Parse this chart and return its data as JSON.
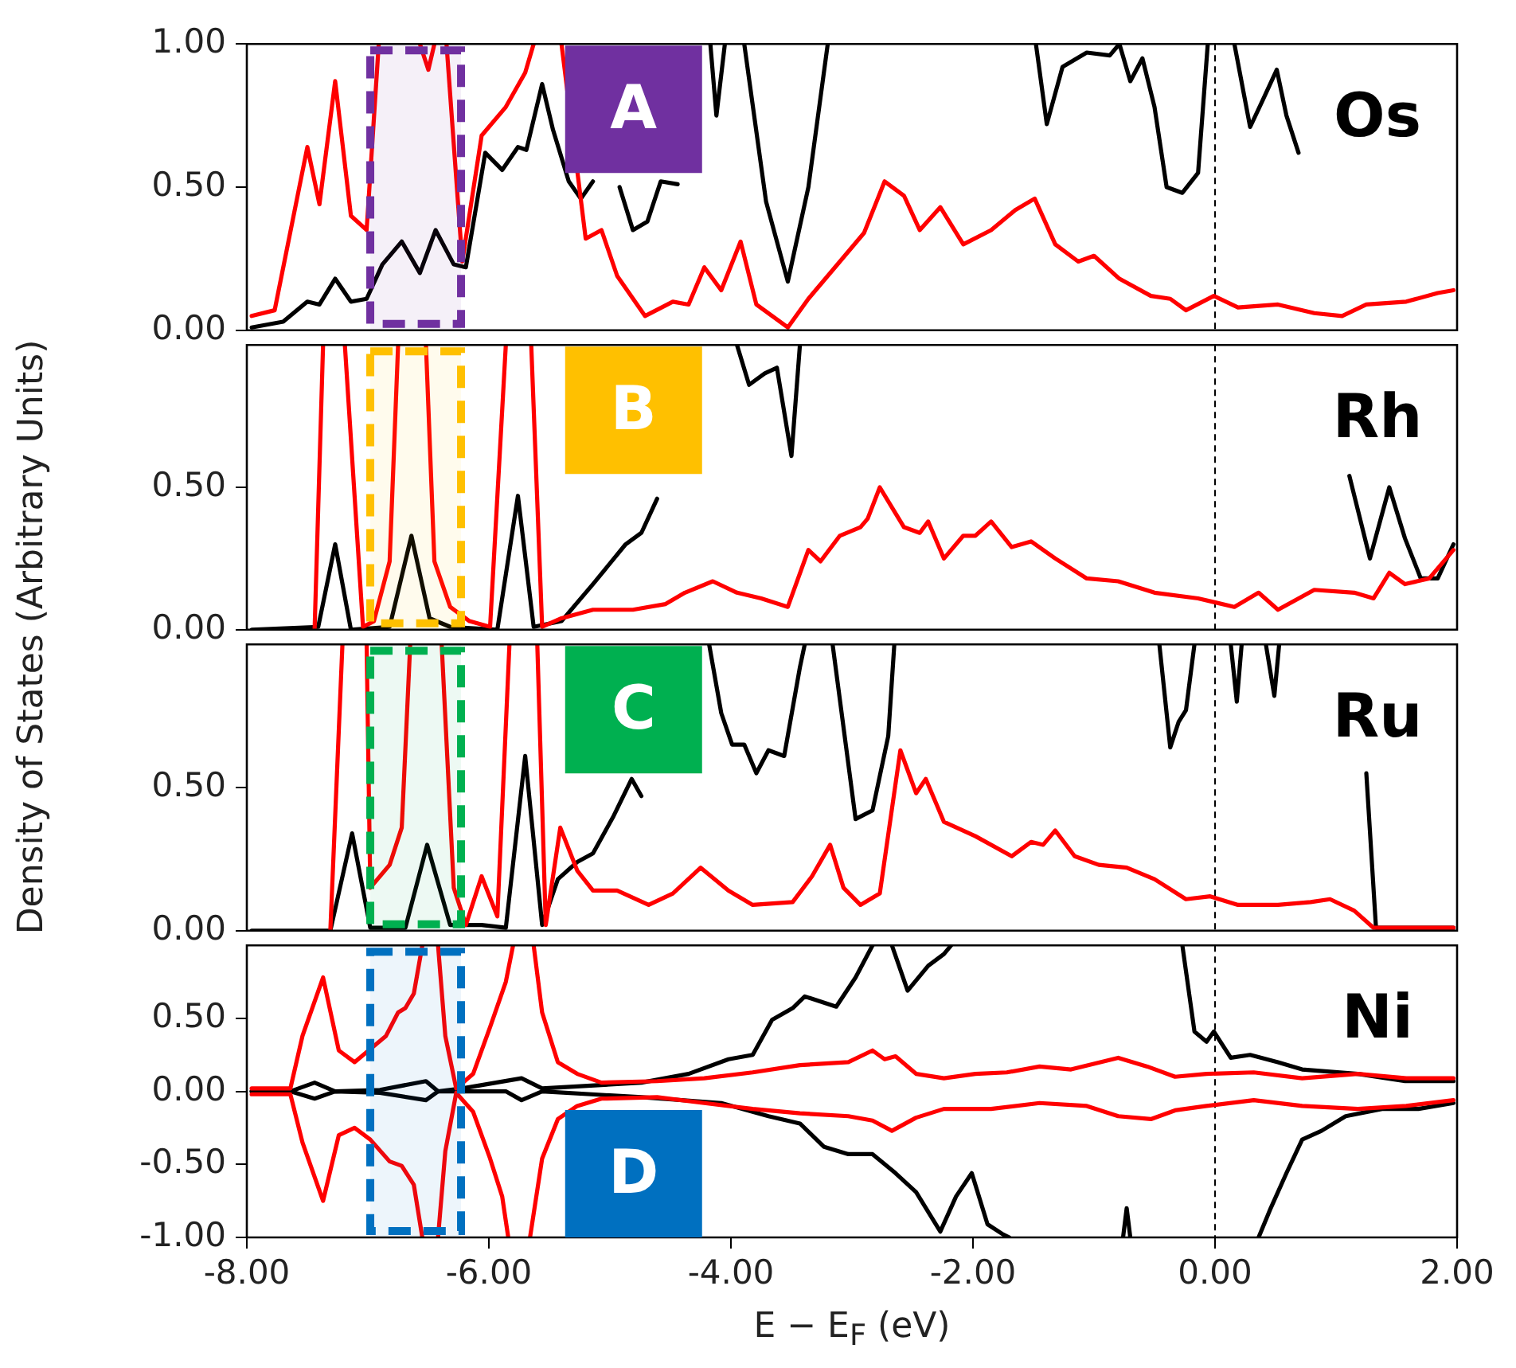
{
  "chart_data": [
    {
      "type": "line",
      "ylabel": "Density of States (Arbitrary Units)",
      "xlim": [
        -8,
        2
      ],
      "ylim": [
        0,
        1
      ],
      "yticks": [
        {
          "value": 0,
          "label": "0.00"
        },
        {
          "value": 0.5,
          "label": "0.50"
        },
        {
          "value": 1,
          "label": "1.00"
        }
      ],
      "tick_labels": "y",
      "series": [
        {
          "color": "#ff0000",
          "x": [
            -7.96,
            -7.77,
            -7.5,
            -7.4,
            -7.27,
            -7.14,
            -7.01,
            -6.91,
            -6.75,
            -6.57,
            -6.5,
            -6.45,
            -6.4,
            -6.35,
            -6.22,
            -6.06,
            -5.86,
            -5.7,
            -5.63,
            -5.5,
            -5.4,
            -5.2,
            -5.07,
            -4.94,
            -4.71,
            -4.48,
            -4.35,
            -4.22,
            -4.08,
            -3.92,
            -3.79,
            -3.53,
            -3.36,
            -3.1,
            -2.9,
            -2.73,
            -2.57,
            -2.44,
            -2.27,
            -2.08,
            -1.85,
            -1.65,
            -1.49,
            -1.32,
            -1.13,
            -1.0,
            -0.79,
            -0.53,
            -0.37,
            -0.24,
            -0.01,
            0.19,
            0.52,
            0.82,
            1.05,
            1.25,
            1.58,
            1.84,
            1.97
          ],
          "values": [
            0.05,
            0.07,
            0.64,
            0.44,
            0.87,
            0.4,
            0.35,
            1.0,
            null,
            1.0,
            0.91,
            1.0,
            null,
            1.0,
            0.24,
            0.68,
            0.78,
            0.9,
            1.0,
            null,
            1.0,
            0.32,
            0.35,
            0.19,
            0.05,
            0.1,
            0.09,
            0.22,
            0.14,
            0.31,
            0.09,
            0.01,
            0.11,
            0.24,
            0.34,
            0.52,
            0.47,
            0.35,
            0.43,
            0.3,
            0.35,
            0.42,
            0.46,
            0.3,
            0.24,
            0.26,
            0.18,
            0.12,
            0.11,
            0.07,
            0.12,
            0.08,
            0.09,
            0.06,
            0.05,
            0.09,
            0.1,
            0.13,
            0.14
          ]
        },
        {
          "color": "#000000",
          "x": [
            -7.96,
            -7.7,
            -7.5,
            -7.4,
            -7.27,
            -7.14,
            -7.01,
            -6.88,
            -6.72,
            -6.57,
            -6.44,
            -6.29,
            -6.19,
            -6.03,
            -5.89,
            -5.76,
            -5.69,
            -5.56,
            -5.47,
            -5.34,
            -5.24,
            -5.14,
            -5.03,
            -4.92,
            -4.81,
            -4.69,
            -4.58,
            -4.44,
            -4.38,
            -4.17,
            -4.12,
            -4.05,
            -3.97,
            -3.89,
            -3.71,
            -3.53,
            -3.36,
            -3.2,
            -2.0,
            -1.48,
            -1.39,
            -1.26,
            -1.06,
            -0.87,
            -0.79,
            -0.7,
            -0.6,
            -0.5,
            -0.4,
            -0.27,
            -0.14,
            -0.06,
            0.05,
            0.16,
            0.29,
            0.39,
            0.51,
            0.59,
            0.69
          ],
          "values": [
            0.01,
            0.03,
            0.1,
            0.09,
            0.18,
            0.1,
            0.11,
            0.23,
            0.31,
            0.2,
            0.35,
            0.23,
            0.22,
            0.62,
            0.56,
            0.64,
            0.63,
            0.86,
            0.7,
            0.52,
            0.46,
            0.52,
            null,
            0.5,
            0.35,
            0.38,
            0.52,
            0.51,
            null,
            1.0,
            0.75,
            1.0,
            null,
            1.0,
            0.45,
            0.17,
            0.5,
            1.0,
            null,
            1.0,
            0.72,
            0.92,
            0.97,
            0.96,
            1.0,
            0.87,
            0.95,
            0.78,
            0.5,
            0.48,
            0.55,
            1.0,
            null,
            1.0,
            0.71,
            0.8,
            0.91,
            0.75,
            0.62
          ]
        }
      ],
      "ref_lines": [
        {
          "axis": "x",
          "value": 0,
          "color": "#000000",
          "line_style": "dashed"
        }
      ],
      "bands": [
        {
          "axis": "x",
          "from": -6.98,
          "to": -6.23,
          "color": "#7030a0"
        }
      ],
      "annotations": [
        "A",
        "Os"
      ]
    },
    {
      "type": "line",
      "xlim": [
        -8,
        2
      ],
      "ylim": [
        0,
        1
      ],
      "yticks": [
        {
          "value": 0,
          "label": "0.00"
        },
        {
          "value": 0.5,
          "label": "0.50"
        }
      ],
      "tick_labels": "y",
      "series": [
        {
          "color": "#ff0000",
          "x": [
            -7.44,
            -7.37,
            -7.28,
            -7.19,
            -7.04,
            -6.95,
            -6.82,
            -6.75,
            -6.63,
            -6.52,
            -6.45,
            -6.32,
            -6.16,
            -5.99,
            -5.86,
            -5.75,
            -5.65,
            -5.56,
            -5.4,
            -5.14,
            -4.81,
            -4.54,
            -4.38,
            -4.15,
            -3.95,
            -3.75,
            -3.53,
            -3.36,
            -3.26,
            -3.1,
            -2.93,
            -2.87,
            -2.77,
            -2.67,
            -2.57,
            -2.44,
            -2.37,
            -2.24,
            -2.08,
            -1.98,
            -1.85,
            -1.68,
            -1.52,
            -1.32,
            -1.06,
            -0.8,
            -0.5,
            -0.14,
            0.16,
            0.36,
            0.52,
            0.82,
            1.15,
            1.31,
            1.44,
            1.57,
            1.77,
            1.97
          ],
          "values": [
            0,
            1.0,
            null,
            1.0,
            0.01,
            0.03,
            0.24,
            1.0,
            null,
            1.0,
            0.24,
            0.08,
            0.03,
            0.01,
            1.0,
            null,
            1.0,
            0.01,
            0.04,
            0.07,
            0.07,
            0.09,
            0.13,
            0.17,
            0.13,
            0.11,
            0.08,
            0.28,
            0.24,
            0.33,
            0.36,
            0.39,
            0.5,
            0.43,
            0.36,
            0.34,
            0.38,
            0.25,
            0.33,
            0.33,
            0.38,
            0.29,
            0.31,
            0.25,
            0.18,
            0.17,
            0.13,
            0.11,
            0.08,
            0.13,
            0.07,
            0.14,
            0.13,
            0.11,
            0.2,
            0.16,
            0.18,
            0.28
          ]
        },
        {
          "color": "#000000",
          "x": [
            -7.96,
            -7.41,
            -7.27,
            -7.14,
            -6.82,
            -6.64,
            -6.49,
            -6.32,
            -5.93,
            -5.76,
            -5.63,
            -5.4,
            -5.14,
            -4.87,
            -4.74,
            -4.61,
            -4.5,
            -3.95,
            -3.85,
            -3.72,
            -3.62,
            -3.5,
            -3.43,
            -3.3,
            1.11,
            1.28,
            1.44,
            1.57,
            1.7,
            1.84,
            1.97
          ],
          "values": [
            0,
            0.01,
            0.3,
            0,
            0.01,
            0.33,
            0.04,
            0.01,
            0,
            0.47,
            0.01,
            0.03,
            0.16,
            0.3,
            0.34,
            0.46,
            null,
            1.0,
            0.86,
            0.9,
            0.92,
            0.61,
            1.0,
            null,
            0.54,
            0.25,
            0.5,
            0.32,
            0.18,
            0.18,
            0.3
          ]
        }
      ],
      "ref_lines": [
        {
          "axis": "x",
          "value": 0,
          "color": "#000000",
          "line_style": "dashed"
        }
      ],
      "bands": [
        {
          "axis": "x",
          "from": -6.98,
          "to": -6.23,
          "color": "#ffc000"
        }
      ],
      "annotations": [
        "B",
        "Rh"
      ]
    },
    {
      "type": "line",
      "xlim": [
        -8,
        2
      ],
      "ylim": [
        0,
        1
      ],
      "yticks": [
        {
          "value": 0,
          "label": "0.00"
        },
        {
          "value": 0.5,
          "label": "0.50"
        }
      ],
      "tick_labels": "y",
      "series": [
        {
          "color": "#ff0000",
          "x": [
            -7.31,
            -7.21,
            -7.1,
            -7.01,
            -6.98,
            -6.82,
            -6.72,
            -6.65,
            -6.5,
            -6.39,
            -6.29,
            -6.19,
            -6.06,
            -5.93,
            -5.83,
            -5.7,
            -5.6,
            -5.53,
            -5.41,
            -5.27,
            -5.14,
            -4.94,
            -4.68,
            -4.48,
            -4.25,
            -4.02,
            -3.82,
            -3.49,
            -3.33,
            -3.18,
            -3.07,
            -2.93,
            -2.77,
            -2.6,
            -2.47,
            -2.39,
            -2.24,
            -1.98,
            -1.68,
            -1.52,
            -1.42,
            -1.32,
            -1.16,
            -0.96,
            -0.73,
            -0.5,
            -0.24,
            -0.04,
            0.19,
            0.52,
            0.79,
            0.95,
            1.15,
            1.31,
            1.97
          ],
          "values": [
            0,
            1.0,
            null,
            1.0,
            0.15,
            0.23,
            0.36,
            1.0,
            null,
            1.0,
            0.15,
            0.02,
            0.19,
            0.05,
            1.0,
            null,
            1.0,
            0.02,
            0.36,
            0.21,
            0.14,
            0.14,
            0.09,
            0.13,
            0.22,
            0.14,
            0.09,
            0.1,
            0.19,
            0.3,
            0.15,
            0.09,
            0.13,
            0.63,
            0.48,
            0.53,
            0.38,
            0.33,
            0.26,
            0.31,
            0.3,
            0.35,
            0.26,
            0.23,
            0.22,
            0.18,
            0.11,
            0.12,
            0.09,
            0.09,
            0.1,
            0.11,
            0.07,
            0.01,
            0.01
          ]
        },
        {
          "color": "#000000",
          "x": [
            -7.96,
            -7.31,
            -7.13,
            -6.98,
            -6.69,
            -6.51,
            -6.32,
            -6.06,
            -5.86,
            -5.7,
            -5.56,
            -5.43,
            -5.27,
            -5.14,
            -4.97,
            -4.82,
            -4.74,
            -4.6,
            -4.18,
            -4.08,
            -3.99,
            -3.89,
            -3.79,
            -3.69,
            -3.56,
            -3.43,
            -3.39,
            -3.3,
            -3.16,
            -2.97,
            -2.83,
            -2.7,
            -2.65,
            -1.0,
            -0.46,
            -0.37,
            -0.3,
            -0.24,
            -0.17,
            -0.02,
            0.13,
            0.18,
            0.22,
            0.32,
            0.42,
            0.49,
            0.53,
            0.9,
            1.25,
            1.33,
            1.97
          ],
          "values": [
            0,
            0,
            0.34,
            0.01,
            0.01,
            0.3,
            0.02,
            0.02,
            0.01,
            0.61,
            0.02,
            0.18,
            0.24,
            0.27,
            0.4,
            0.53,
            0.47,
            null,
            1.0,
            0.76,
            0.65,
            0.65,
            0.55,
            0.63,
            0.61,
            0.92,
            1.0,
            null,
            1.0,
            0.39,
            0.42,
            0.68,
            1.0,
            null,
            1.0,
            0.64,
            0.73,
            0.77,
            1.0,
            null,
            1.0,
            0.8,
            1.0,
            null,
            1.0,
            0.82,
            1.0,
            null,
            0.55,
            0.01,
            0.01
          ]
        }
      ],
      "ref_lines": [
        {
          "axis": "x",
          "value": 0,
          "color": "#000000",
          "line_style": "dashed"
        }
      ],
      "bands": [
        {
          "axis": "x",
          "from": -6.98,
          "to": -6.23,
          "color": "#00b050"
        }
      ],
      "annotations": [
        "C",
        "Ru"
      ]
    },
    {
      "type": "line",
      "xlabel": "E − E$_{F}$ (eV)",
      "xlim": [
        -8,
        2
      ],
      "xticks": [
        {
          "value": -8,
          "label": "-8.00"
        },
        {
          "value": -6,
          "label": "-6.00"
        },
        {
          "value": -4,
          "label": "-4.00"
        },
        {
          "value": -2,
          "label": "-2.00"
        },
        {
          "value": 0,
          "label": "0.00"
        },
        {
          "value": 2,
          "label": "2.00"
        }
      ],
      "ylim": [
        -1,
        1
      ],
      "yticks": [
        {
          "value": -1,
          "label": "-1.00"
        },
        {
          "value": -0.5,
          "label": "-0.50"
        },
        {
          "value": 0,
          "label": "0.00"
        },
        {
          "value": 0.5,
          "label": "0.50"
        }
      ],
      "series": [
        {
          "color": "#ff0000",
          "x": [
            -7.96,
            -7.64,
            -7.54,
            -7.37,
            -7.24,
            -7.11,
            -6.98,
            -6.85,
            -6.75,
            -6.69,
            -6.62,
            -6.55,
            -6.5,
            -6.42,
            -6.36,
            -6.27,
            -6.13,
            -5.99,
            -5.86,
            -5.8,
            -5.7,
            -5.63,
            -5.56,
            -5.43,
            -5.27,
            -5.07,
            -4.61,
            -4.22,
            -3.82,
            -3.43,
            -3.03,
            -2.83,
            -2.73,
            -2.64,
            -2.47,
            -2.24,
            -1.98,
            -1.72,
            -1.45,
            -1.19,
            -0.8,
            -0.56,
            -0.33,
            -0.07,
            0.32,
            0.72,
            1.18,
            1.58,
            1.97
          ],
          "values": [
            0.02,
            0.02,
            0.38,
            0.78,
            0.28,
            0.2,
            0.29,
            0.38,
            0.54,
            0.57,
            0.67,
            1.0,
            null,
            1.0,
            0.38,
            0.02,
            0.12,
            0.44,
            0.75,
            1.0,
            null,
            1.0,
            0.54,
            0.2,
            0.12,
            0.06,
            0.07,
            0.09,
            0.13,
            0.18,
            0.2,
            0.28,
            0.22,
            0.24,
            0.12,
            0.09,
            0.12,
            0.13,
            0.17,
            0.15,
            0.23,
            0.17,
            0.1,
            0.12,
            0.13,
            0.09,
            0.12,
            0.09,
            0.09
          ]
        },
        {
          "color": "#ff0000",
          "x": [
            -7.96,
            -7.64,
            -7.54,
            -7.37,
            -7.24,
            -7.11,
            -6.98,
            -6.82,
            -6.72,
            -6.62,
            -6.55,
            -6.5,
            -6.42,
            -6.36,
            -6.27,
            -6.13,
            -5.99,
            -5.89,
            -5.84,
            -5.75,
            -5.66,
            -5.56,
            -5.43,
            -5.27,
            -5.07,
            -4.61,
            -4.22,
            -3.82,
            -3.43,
            -3.03,
            -2.83,
            -2.67,
            -2.47,
            -2.24,
            -1.85,
            -1.45,
            -1.06,
            -0.8,
            -0.53,
            -0.33,
            -0.07,
            0.32,
            0.72,
            1.18,
            1.58,
            1.97
          ],
          "values": [
            -0.02,
            -0.02,
            -0.35,
            -0.75,
            -0.3,
            -0.25,
            -0.33,
            -0.48,
            -0.51,
            -0.64,
            -1.0,
            null,
            -1.0,
            -0.41,
            -0.01,
            -0.14,
            -0.46,
            -0.72,
            -1.0,
            null,
            -1.0,
            -0.46,
            -0.19,
            -0.1,
            -0.05,
            -0.04,
            -0.08,
            -0.12,
            -0.15,
            -0.17,
            -0.2,
            -0.27,
            -0.18,
            -0.12,
            -0.12,
            -0.08,
            -0.1,
            -0.17,
            -0.19,
            -0.13,
            -0.1,
            -0.06,
            -0.1,
            -0.12,
            -0.1,
            -0.06
          ]
        },
        {
          "color": "#000000",
          "x": [
            -7.96,
            -7.64,
            -7.44,
            -7.27,
            -6.9,
            -6.52,
            -6.42,
            -6.22,
            -5.73,
            -5.56,
            -4.74,
            -4.35,
            -4.02,
            -3.82,
            -3.66,
            -3.49,
            -3.39,
            -3.13,
            -2.97,
            -2.83,
            -2.75,
            -2.67,
            -2.54,
            -2.37,
            -2.24,
            -2.18,
            -1.0,
            -0.27,
            -0.17,
            -0.07,
            -0.01,
            0.13,
            0.29,
            0.52,
            0.72,
            1.18,
            1.57,
            1.97
          ],
          "values": [
            0,
            0,
            0.06,
            0,
            0.01,
            0.07,
            0,
            0.02,
            0.09,
            0.02,
            0.06,
            0.12,
            0.22,
            0.25,
            0.49,
            0.57,
            0.65,
            0.58,
            0.78,
            1.0,
            null,
            1.0,
            0.69,
            0.86,
            0.94,
            1.0,
            null,
            1.0,
            0.41,
            0.34,
            0.41,
            0.23,
            0.25,
            0.2,
            0.15,
            0.12,
            0.07,
            0.07
          ]
        },
        {
          "color": "#000000",
          "x": [
            -7.96,
            -7.64,
            -7.44,
            -7.27,
            -6.9,
            -6.52,
            -6.42,
            -5.86,
            -5.73,
            -5.56,
            -4.74,
            -4.08,
            -3.69,
            -3.43,
            -3.23,
            -3.03,
            -2.83,
            -2.64,
            -2.47,
            -2.27,
            -2.14,
            -2.01,
            -1.88,
            -1.75,
            -1.7,
            -1.2,
            -0.76,
            -0.73,
            -0.7,
            0,
            0.36,
            0.46,
            0.59,
            0.72,
            0.88,
            1.08,
            1.38,
            1.68,
            1.97
          ],
          "values": [
            0,
            0,
            -0.05,
            0,
            -0.01,
            -0.06,
            0,
            0,
            -0.06,
            0,
            -0.04,
            -0.08,
            -0.17,
            -0.22,
            -0.38,
            -0.43,
            -0.43,
            -0.56,
            -0.69,
            -0.96,
            -0.72,
            -0.56,
            -0.91,
            -0.98,
            -1.0,
            null,
            -1.0,
            -0.8,
            -1.0,
            null,
            -1.0,
            -0.8,
            -0.56,
            -0.33,
            -0.27,
            -0.17,
            -0.12,
            -0.12,
            -0.08
          ]
        }
      ],
      "ref_lines": [
        {
          "axis": "x",
          "value": 0,
          "color": "#000000",
          "line_style": "dashed"
        }
      ],
      "bands": [
        {
          "axis": "x",
          "from": -6.98,
          "to": -6.23,
          "color": "#0070c0"
        }
      ],
      "annotations": [
        "D",
        "Ni"
      ]
    }
  ]
}
